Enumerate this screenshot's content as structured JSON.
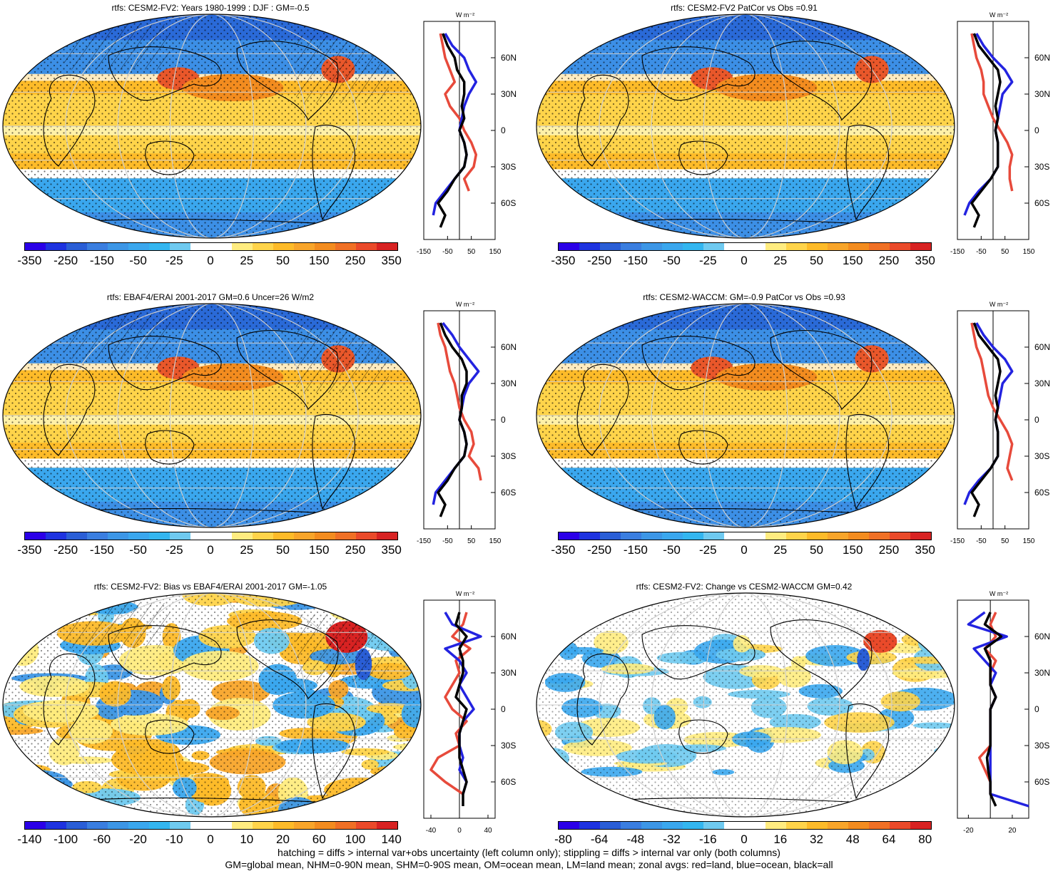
{
  "colors": {
    "scale": [
      "#2b00e8",
      "#1e33e0",
      "#2a5ed6",
      "#3a7ee0",
      "#3c96e6",
      "#3aa7ee",
      "#33b6f0",
      "#6fcaf0",
      "#ffffff",
      "#ffffff",
      "#ffec80",
      "#ffd44a",
      "#fdbb29",
      "#f8a52a",
      "#f38c1f",
      "#f07025",
      "#ea4a2a",
      "#d82222"
    ],
    "land": "#e74a3b",
    "ocean": "#2323e0",
    "all": "#000000"
  },
  "panels": [
    {
      "title": "rtfs: CESM2-FV2: Years 1980-1999 : DJF : GM=-0.5",
      "cbar_labels": [
        "-350",
        "-250",
        "-150",
        "-50",
        "-25",
        "0",
        "25",
        "50",
        "150",
        "250",
        "350"
      ],
      "xticks": [
        "-150",
        "-50",
        "50",
        "150"
      ],
      "lat_labels": [
        "60N",
        "30N",
        "0",
        "30S",
        "60S"
      ],
      "units": "W m⁻²",
      "style": "mean"
    },
    {
      "title": "rtfs: CESM2-FV2 PatCor vs Obs =0.91",
      "cbar_labels": [
        "-350",
        "-250",
        "-150",
        "-50",
        "-25",
        "0",
        "25",
        "50",
        "150",
        "250",
        "350"
      ],
      "xticks": [
        "-150",
        "-50",
        "50",
        "150"
      ],
      "lat_labels": [
        "60N",
        "30N",
        "0",
        "30S",
        "60S"
      ],
      "units": "W m⁻²",
      "style": "mean"
    },
    {
      "title": "rtfs: EBAF4/ERAI 2001-2017 GM=0.6 Uncer=26 W/m2",
      "cbar_labels": [
        "-350",
        "-250",
        "-150",
        "-50",
        "-25",
        "0",
        "25",
        "50",
        "150",
        "250",
        "350"
      ],
      "xticks": [
        "-150",
        "-50",
        "50",
        "150"
      ],
      "lat_labels": [
        "60N",
        "30N",
        "0",
        "30S",
        "60S"
      ],
      "units": "W m⁻²",
      "style": "mean"
    },
    {
      "title": "rtfs: CESM2-WACCM: GM=-0.9 PatCor vs Obs =0.93",
      "cbar_labels": [
        "-350",
        "-250",
        "-150",
        "-50",
        "-25",
        "0",
        "25",
        "50",
        "150",
        "250",
        "350"
      ],
      "xticks": [
        "-150",
        "-50",
        "50",
        "150"
      ],
      "lat_labels": [
        "60N",
        "30N",
        "0",
        "30S",
        "60S"
      ],
      "units": "W m⁻²",
      "style": "mean"
    },
    {
      "title": "rtfs: CESM2-FV2: Bias vs EBAF4/ERAI 2001-2017 GM=-1.05",
      "cbar_labels": [
        "-140",
        "-100",
        "-60",
        "-20",
        "-10",
        "0",
        "10",
        "20",
        "60",
        "100",
        "140"
      ],
      "xticks": [
        "-40",
        "0",
        "40"
      ],
      "lat_labels": [
        "60N",
        "30N",
        "0",
        "30S",
        "60S"
      ],
      "units": "W m⁻²",
      "style": "bias"
    },
    {
      "title": "rtfs: CESM2-FV2: Change vs CESM2-WACCM GM=0.42",
      "cbar_labels": [
        "-80",
        "-64",
        "-48",
        "-32",
        "-16",
        "0",
        "16",
        "32",
        "48",
        "64",
        "80"
      ],
      "xticks": [
        "-20",
        "20"
      ],
      "lat_labels": [
        "60N",
        "30N",
        "0",
        "30S",
        "60S"
      ],
      "units": "W m⁻²",
      "style": "change"
    }
  ],
  "footer": {
    "line1": "hatching = diffs > internal var+obs uncertainty (left column only); stippling = diffs > internal var only (both columns)",
    "line2": "GM=global mean, NHM=0-90N mean, SHM=0-90S mean, OM=ocean mean, LM=land mean; zonal avgs: red=land, blue=ocean, black=all"
  },
  "chart_data": [
    {
      "type": "area",
      "title": "rtfs: CESM2-FV2: Years 1980-1999 : DJF : GM=-0.5",
      "colorbar_levels": [
        -350,
        -250,
        -150,
        -50,
        -25,
        0,
        25,
        50,
        150,
        250,
        350
      ],
      "zonal_mean": {
        "ylabel": "W m⁻²",
        "xlim": [
          -150,
          150
        ],
        "lat": [
          80,
          70,
          60,
          50,
          40,
          30,
          20,
          10,
          0,
          -10,
          -20,
          -30,
          -40,
          -50,
          -60,
          -70,
          -80
        ],
        "series": [
          {
            "name": "land",
            "values": [
              -80,
              -70,
              -60,
              -40,
              -20,
              -60,
              -40,
              0,
              20,
              50,
              70,
              60,
              20,
              40,
              null,
              -50,
              null
            ]
          },
          {
            "name": "ocean",
            "values": [
              -60,
              -30,
              20,
              40,
              70,
              40,
              20,
              10,
              0,
              20,
              30,
              20,
              -20,
              -60,
              -100,
              -110,
              null
            ]
          },
          {
            "name": "all",
            "values": [
              -70,
              -50,
              -20,
              -10,
              20,
              20,
              10,
              20,
              0,
              20,
              30,
              20,
              -20,
              -50,
              -90,
              -60,
              -80
            ]
          }
        ]
      }
    },
    {
      "type": "area",
      "title": "rtfs: CESM2-FV2 PatCor vs Obs =0.91",
      "colorbar_levels": [
        -350,
        -250,
        -150,
        -50,
        -25,
        0,
        25,
        50,
        150,
        250,
        350
      ],
      "zonal_mean": {
        "ylabel": "W m⁻²",
        "xlim": [
          -150,
          150
        ],
        "lat": [
          80,
          70,
          60,
          50,
          40,
          30,
          20,
          10,
          0,
          -10,
          -20,
          -30,
          -40,
          -50,
          -60,
          -70,
          -80
        ],
        "series": [
          {
            "name": "land",
            "values": [
              -90,
              -80,
              -70,
              -50,
              -40,
              -40,
              -20,
              0,
              30,
              60,
              80,
              70,
              70,
              80,
              null,
              -60,
              null
            ]
          },
          {
            "name": "ocean",
            "values": [
              -70,
              -40,
              0,
              50,
              80,
              40,
              30,
              20,
              10,
              20,
              20,
              20,
              -10,
              -60,
              -100,
              -120,
              null
            ]
          },
          {
            "name": "all",
            "values": [
              -80,
              -60,
              -20,
              20,
              30,
              20,
              10,
              20,
              10,
              20,
              20,
              20,
              -10,
              -50,
              -90,
              -60,
              -80
            ]
          }
        ]
      }
    },
    {
      "type": "area",
      "title": "rtfs: EBAF4/ERAI 2001-2017 GM=0.6 Uncer=26 W/m2",
      "colorbar_levels": [
        -350,
        -250,
        -150,
        -50,
        -25,
        0,
        25,
        50,
        150,
        250,
        350
      ],
      "zonal_mean": {
        "ylabel": "W m⁻²",
        "xlim": [
          -150,
          150
        ],
        "lat": [
          80,
          70,
          60,
          50,
          40,
          30,
          20,
          10,
          0,
          -10,
          -20,
          -30,
          -40,
          -50,
          -60,
          -70,
          -80
        ],
        "series": [
          {
            "name": "land",
            "values": [
              -90,
              -80,
              -60,
              -50,
              -40,
              -20,
              -10,
              0,
              20,
              50,
              60,
              40,
              80,
              90,
              null,
              -60,
              null
            ]
          },
          {
            "name": "ocean",
            "values": [
              -70,
              -30,
              0,
              40,
              80,
              40,
              20,
              10,
              0,
              20,
              30,
              20,
              -20,
              -60,
              -100,
              -110,
              null
            ]
          },
          {
            "name": "all",
            "values": [
              -80,
              -60,
              -30,
              10,
              30,
              30,
              10,
              10,
              0,
              20,
              30,
              20,
              -20,
              -50,
              -90,
              -60,
              -80
            ]
          }
        ]
      }
    },
    {
      "type": "area",
      "title": "rtfs: CESM2-WACCM: GM=-0.9 PatCor vs Obs =0.93",
      "colorbar_levels": [
        -350,
        -250,
        -150,
        -50,
        -25,
        0,
        25,
        50,
        150,
        250,
        350
      ],
      "zonal_mean": {
        "ylabel": "W m⁻²",
        "xlim": [
          -150,
          150
        ],
        "lat": [
          80,
          70,
          60,
          50,
          40,
          30,
          20,
          10,
          0,
          -10,
          -20,
          -30,
          -40,
          -50,
          -60,
          -70,
          -80
        ],
        "series": [
          {
            "name": "land",
            "values": [
              -90,
              -80,
              -70,
              -50,
              -40,
              -30,
              -20,
              0,
              30,
              60,
              80,
              70,
              60,
              80,
              null,
              -60,
              null
            ]
          },
          {
            "name": "ocean",
            "values": [
              -70,
              -40,
              0,
              50,
              80,
              40,
              30,
              20,
              10,
              20,
              20,
              20,
              -10,
              -60,
              -100,
              -120,
              null
            ]
          },
          {
            "name": "all",
            "values": [
              -80,
              -60,
              -20,
              20,
              30,
              20,
              10,
              20,
              10,
              20,
              20,
              20,
              -10,
              -50,
              -90,
              -60,
              -80
            ]
          }
        ]
      }
    },
    {
      "type": "area",
      "title": "rtfs: CESM2-FV2: Bias vs EBAF4/ERAI 2001-2017 GM=-1.05",
      "colorbar_levels": [
        -140,
        -100,
        -60,
        -20,
        -10,
        0,
        10,
        20,
        60,
        100,
        140
      ],
      "zonal_mean": {
        "ylabel": "W m⁻²",
        "xlim": [
          -50,
          50
        ],
        "lat": [
          80,
          70,
          60,
          50,
          40,
          30,
          20,
          10,
          0,
          -10,
          -20,
          -30,
          -40,
          -50,
          -60,
          -70,
          -80
        ],
        "series": [
          {
            "name": "land",
            "values": [
              10,
              5,
              -10,
              15,
              -5,
              0,
              -10,
              -20,
              -10,
              10,
              -5,
              0,
              -30,
              -40,
              -20,
              5,
              null
            ]
          },
          {
            "name": "ocean",
            "values": [
              -20,
              -10,
              30,
              -20,
              0,
              10,
              0,
              10,
              20,
              5,
              0,
              0,
              5,
              0,
              10,
              5,
              null
            ]
          },
          {
            "name": "all",
            "values": [
              0,
              -5,
              10,
              0,
              5,
              5,
              0,
              -5,
              10,
              5,
              0,
              0,
              0,
              5,
              10,
              5,
              5
            ]
          }
        ]
      }
    },
    {
      "type": "area",
      "title": "rtfs: CESM2-FV2: Change vs CESM2-WACCM GM=0.42",
      "colorbar_levels": [
        -80,
        -64,
        -48,
        -32,
        -16,
        0,
        16,
        32,
        48,
        64,
        80
      ],
      "zonal_mean": {
        "ylabel": "W m⁻²",
        "xlim": [
          -30,
          35
        ],
        "lat": [
          80,
          70,
          60,
          50,
          40,
          30,
          20,
          10,
          0,
          -10,
          -20,
          -30,
          -40,
          -50,
          -60,
          -70,
          -80
        ],
        "series": [
          {
            "name": "land",
            "values": [
              5,
              0,
              5,
              -5,
              5,
              0,
              0,
              5,
              0,
              0,
              0,
              0,
              -10,
              -5,
              0,
              0,
              null
            ]
          },
          {
            "name": "ocean",
            "values": [
              -5,
              -20,
              15,
              -15,
              -5,
              5,
              0,
              5,
              0,
              0,
              0,
              0,
              0,
              0,
              0,
              0,
              35
            ]
          },
          {
            "name": "all",
            "values": [
              0,
              -5,
              10,
              -5,
              0,
              0,
              0,
              5,
              0,
              0,
              0,
              0,
              -3,
              -2,
              0,
              0,
              5
            ]
          }
        ]
      }
    }
  ]
}
